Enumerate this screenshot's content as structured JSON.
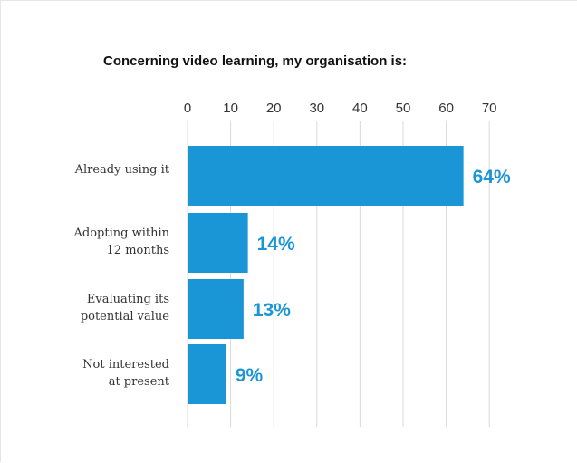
{
  "colors": {
    "bar": "#1a96d6",
    "label": "#1a96d6",
    "grid": "#d9d9d9"
  },
  "chart_data": {
    "type": "bar",
    "orientation": "horizontal",
    "title": "Concerning video learning, my organisation is:",
    "xlim": [
      0,
      70
    ],
    "xticks": [
      0,
      10,
      20,
      30,
      40,
      50,
      60,
      70
    ],
    "xaxis_position": "top",
    "grid": true,
    "categories": [
      [
        "Already using it"
      ],
      [
        "Adopting within",
        "12 months"
      ],
      [
        "Evaluating its",
        "potential value"
      ],
      [
        "Not interested",
        "at present"
      ]
    ],
    "values": [
      64,
      14,
      13,
      9
    ],
    "data_labels": [
      "64%",
      "14%",
      "13%",
      "9%"
    ]
  }
}
